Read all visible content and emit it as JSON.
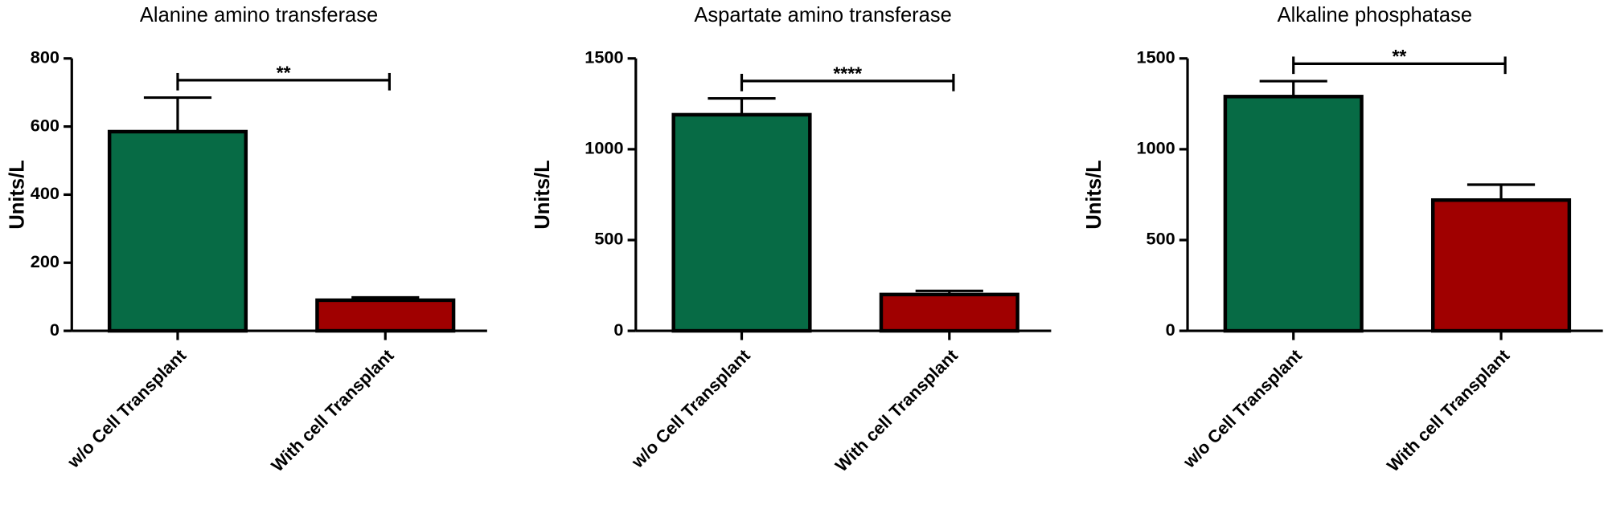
{
  "chart_data": [
    {
      "type": "bar",
      "title": "Alanine amino transferase",
      "ylabel": "Units/L",
      "categories": [
        "w/o Cell Transplant",
        "With cell Transplant"
      ],
      "values": [
        585,
        90
      ],
      "errors": [
        100,
        8
      ],
      "colors": [
        "#076b45",
        "#a00000"
      ],
      "ylim": [
        0,
        800
      ],
      "yticks": [
        0,
        200,
        400,
        600,
        800
      ],
      "significance": "**"
    },
    {
      "type": "bar",
      "title": "Aspartate amino transferase",
      "ylabel": "Units/L",
      "categories": [
        "w/o Cell Transplant",
        "With cell Transplant"
      ],
      "values": [
        1190,
        200
      ],
      "errors": [
        90,
        20
      ],
      "colors": [
        "#076b45",
        "#a00000"
      ],
      "ylim": [
        0,
        1500
      ],
      "yticks": [
        0,
        500,
        1000,
        1500
      ],
      "significance": "****"
    },
    {
      "type": "bar",
      "title": "Alkaline phosphatase",
      "ylabel": "Units/L",
      "categories": [
        "w/o Cell Transplant",
        "With cell Transplant"
      ],
      "values": [
        1290,
        720
      ],
      "errors": [
        85,
        85
      ],
      "colors": [
        "#076b45",
        "#a00000"
      ],
      "ylim": [
        0,
        1500
      ],
      "yticks": [
        0,
        500,
        1000,
        1500
      ],
      "significance": "**"
    }
  ]
}
